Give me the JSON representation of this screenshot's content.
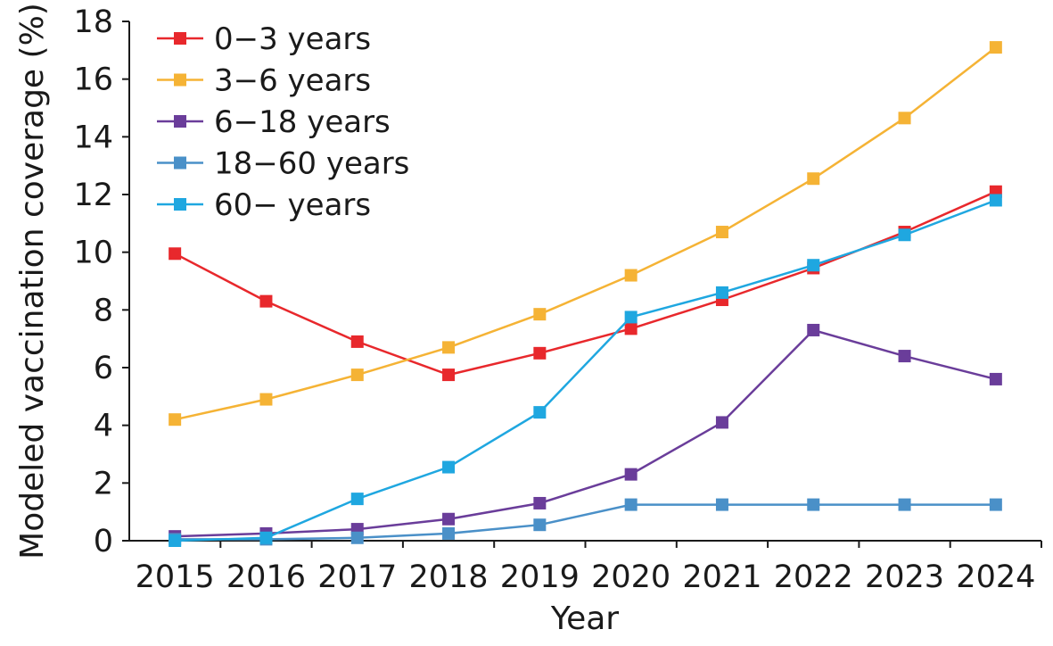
{
  "chart_data": {
    "type": "line",
    "title": "",
    "xlabel": "Year",
    "ylabel": "Modeled vaccination coverage (%)",
    "categories": [
      "2015",
      "2016",
      "2017",
      "2018",
      "2019",
      "2020",
      "2021",
      "2022",
      "2023",
      "2024"
    ],
    "y_ticks": [
      "0",
      "2",
      "4",
      "6",
      "8",
      "10",
      "12",
      "14",
      "16",
      "18"
    ],
    "ylim": [
      0,
      18
    ],
    "grid": false,
    "legend_position": "top-left",
    "series": [
      {
        "name": "0−3 years",
        "color": "#e8282c",
        "values": [
          9.95,
          8.3,
          6.9,
          5.75,
          6.5,
          7.35,
          8.35,
          9.45,
          10.7,
          12.1
        ]
      },
      {
        "name": "3−6 years",
        "color": "#f5b335",
        "values": [
          4.2,
          4.9,
          5.75,
          6.7,
          7.85,
          9.2,
          10.7,
          12.55,
          14.65,
          17.1
        ]
      },
      {
        "name": "6−18 years",
        "color": "#6a3d9a",
        "values": [
          0.15,
          0.25,
          0.4,
          0.75,
          1.3,
          2.3,
          4.1,
          7.3,
          6.4,
          5.6
        ]
      },
      {
        "name": "18−60 years",
        "color": "#4a90c8",
        "values": [
          0.05,
          0.05,
          0.1,
          0.25,
          0.55,
          1.25,
          1.25,
          1.25,
          1.25,
          1.25
        ]
      },
      {
        "name": "60− years",
        "color": "#1fa7e0",
        "values": [
          0.0,
          0.1,
          1.45,
          2.55,
          4.45,
          7.75,
          8.6,
          9.55,
          10.6,
          11.8
        ]
      }
    ]
  }
}
